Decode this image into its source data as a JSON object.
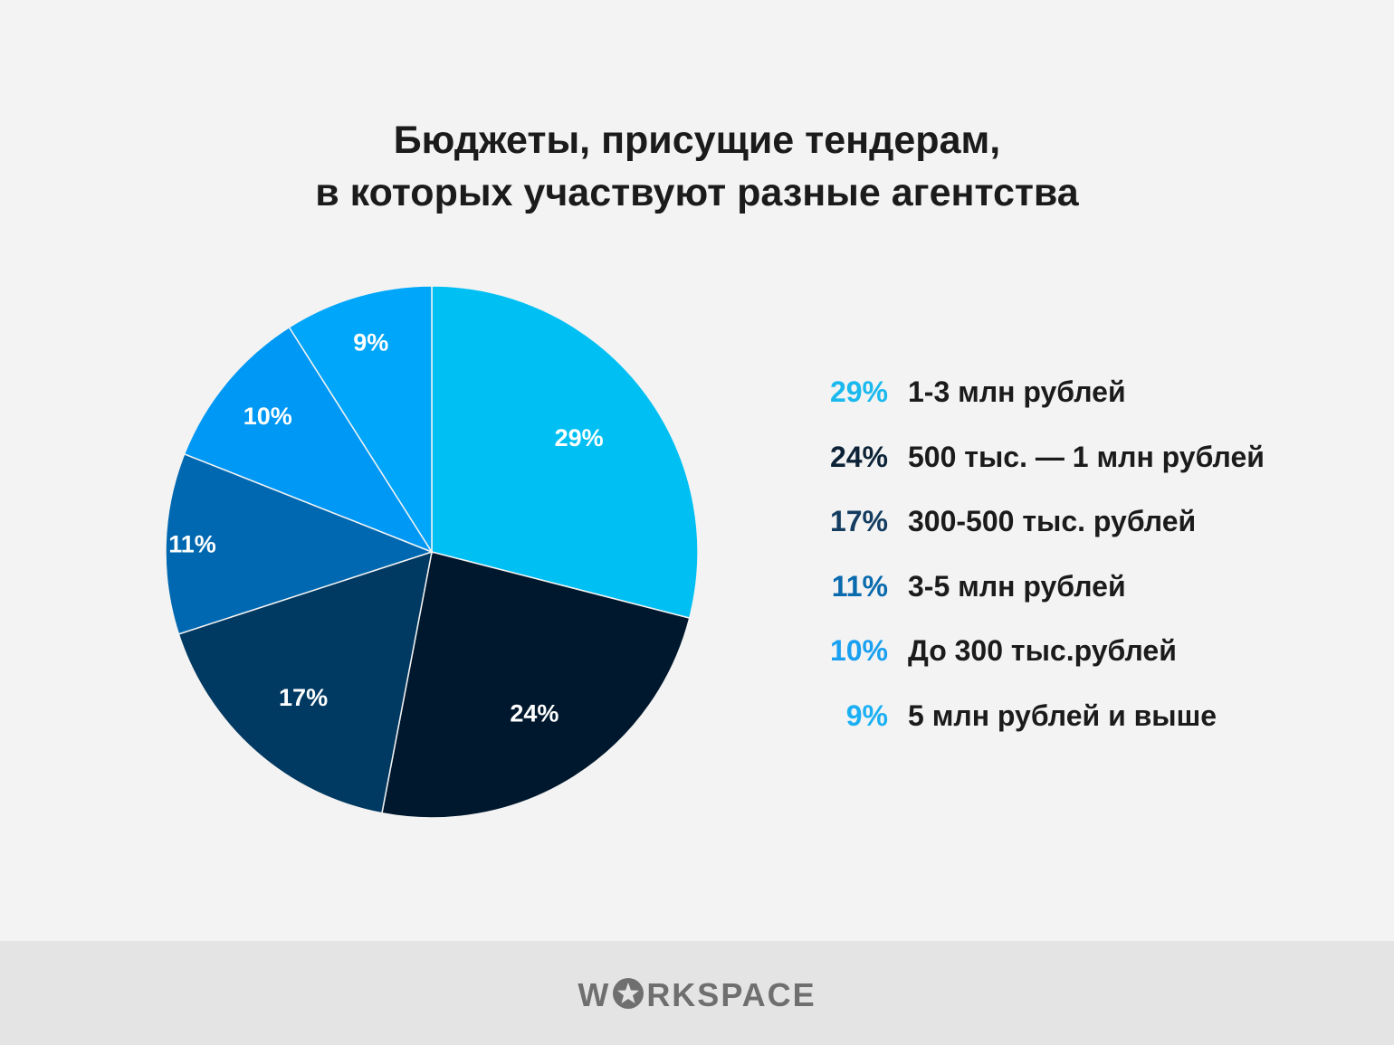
{
  "chart_data": {
    "type": "pie",
    "title": [
      "Бюджеты, присущие тендерам,",
      "в которых участвуют разные агентства"
    ],
    "slices": [
      {
        "label": "1-3 млн рублей",
        "value": 29,
        "value_label": "29%",
        "color": "#00c0f3"
      },
      {
        "label": "500 тыс. — 1 млн рублей",
        "value": 24,
        "value_label": "24%",
        "color": "#00182e"
      },
      {
        "label": "300-500 тыс. рублей",
        "value": 17,
        "value_label": "17%",
        "color": "#003961"
      },
      {
        "label": "3-5 млн рублей",
        "value": 11,
        "value_label": "11%",
        "color": "#0068b0"
      },
      {
        "label": "До 300 тыс.рублей",
        "value": 10,
        "value_label": "10%",
        "color": "#0098f5"
      },
      {
        "label": "5 млн рублей и выше",
        "value": 9,
        "value_label": "9%",
        "color": "#00a6f9"
      }
    ],
    "legend_placement": "right",
    "legend_pct_colors": [
      "#1ab9ee",
      "#0d2237",
      "#133c60",
      "#0a6aae",
      "#1aa0f0",
      "#1ab0f3"
    ]
  },
  "footer": {
    "logo_text_left": "W",
    "logo_text_right": "RKSPACE",
    "logo_icon": "star-icon"
  }
}
